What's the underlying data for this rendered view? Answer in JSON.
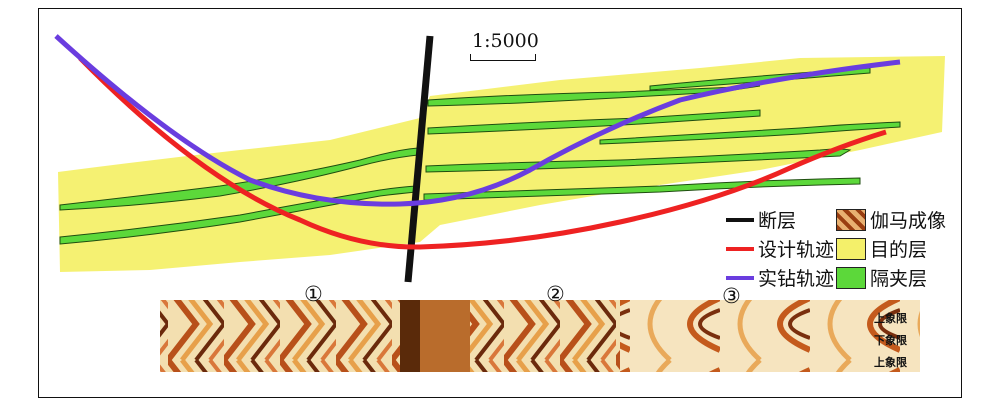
{
  "scale": "1:5000",
  "legend": [
    {
      "label": "断层",
      "kind": "line",
      "color": "#111111"
    },
    {
      "label": "设计轨迹",
      "kind": "line",
      "color": "#ee2222"
    },
    {
      "label": "实钻轨迹",
      "kind": "line",
      "color": "#6a3ddf"
    },
    {
      "label": "伽马成像",
      "kind": "swatch",
      "color": "#c97a2a"
    },
    {
      "label": "目的层",
      "kind": "swatch",
      "color": "#f4f06a"
    },
    {
      "label": "隔夹层",
      "kind": "swatch",
      "color": "#5cd83a"
    }
  ],
  "markers": [
    "①",
    "②",
    "③"
  ],
  "strip_labels": [
    "上象限",
    "下象限",
    "上象限"
  ],
  "colors": {
    "target_layer": "#f4f06a",
    "interlayer": "#5cd83a",
    "design_track": "#ee2222",
    "actual_track": "#6a3ddf",
    "fault": "#111111"
  }
}
